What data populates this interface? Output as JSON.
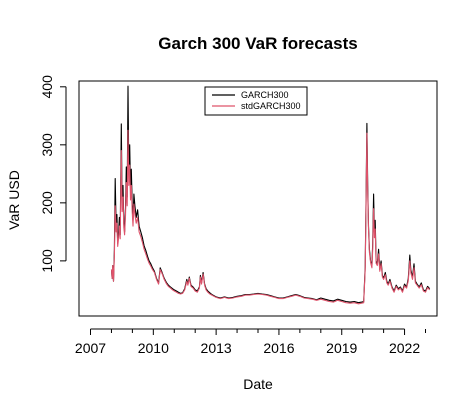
{
  "chart_data": {
    "type": "line",
    "title": "Garch 300 VaR forecasts",
    "xlabel": "Date",
    "ylabel": "VaR USD",
    "x_ticks": [
      "2007",
      "2010",
      "2013",
      "2016",
      "2019",
      "2022"
    ],
    "y_ticks": [
      100,
      200,
      300,
      400
    ],
    "xlim": [
      2006.45,
      2023.55
    ],
    "ylim": [
      5,
      410
    ],
    "grid": false,
    "legend_position": "top-center",
    "series": [
      {
        "name": "GARCH300",
        "color": "#000000",
        "points": [
          [
            2008.0,
            85
          ],
          [
            2008.03,
            70
          ],
          [
            2008.06,
            92
          ],
          [
            2008.1,
            65
          ],
          [
            2008.14,
            120
          ],
          [
            2008.18,
            242
          ],
          [
            2008.22,
            160
          ],
          [
            2008.26,
            180
          ],
          [
            2008.3,
            130
          ],
          [
            2008.34,
            150
          ],
          [
            2008.38,
            175
          ],
          [
            2008.42,
            145
          ],
          [
            2008.47,
            336
          ],
          [
            2008.51,
            200
          ],
          [
            2008.55,
            230
          ],
          [
            2008.59,
            165
          ],
          [
            2008.63,
            150
          ],
          [
            2008.67,
            190
          ],
          [
            2008.71,
            262
          ],
          [
            2008.75,
            210
          ],
          [
            2008.79,
            401
          ],
          [
            2008.83,
            250
          ],
          [
            2008.87,
            300
          ],
          [
            2008.91,
            225
          ],
          [
            2008.95,
            258
          ],
          [
            2008.99,
            200
          ],
          [
            2009.03,
            170
          ],
          [
            2009.07,
            215
          ],
          [
            2009.12,
            195
          ],
          [
            2009.18,
            175
          ],
          [
            2009.25,
            188
          ],
          [
            2009.32,
            160
          ],
          [
            2009.4,
            150
          ],
          [
            2009.48,
            140
          ],
          [
            2009.56,
            126
          ],
          [
            2009.64,
            118
          ],
          [
            2009.72,
            108
          ],
          [
            2009.8,
            100
          ],
          [
            2009.88,
            95
          ],
          [
            2009.96,
            88
          ],
          [
            2010.05,
            82
          ],
          [
            2010.15,
            70
          ],
          [
            2010.25,
            62
          ],
          [
            2010.33,
            88
          ],
          [
            2010.42,
            80
          ],
          [
            2010.52,
            70
          ],
          [
            2010.62,
            63
          ],
          [
            2010.72,
            58
          ],
          [
            2010.82,
            55
          ],
          [
            2010.92,
            52
          ],
          [
            2011.0,
            50
          ],
          [
            2011.1,
            48
          ],
          [
            2011.2,
            46
          ],
          [
            2011.3,
            44
          ],
          [
            2011.4,
            45
          ],
          [
            2011.5,
            52
          ],
          [
            2011.6,
            68
          ],
          [
            2011.65,
            60
          ],
          [
            2011.72,
            72
          ],
          [
            2011.8,
            58
          ],
          [
            2011.9,
            55
          ],
          [
            2012.0,
            50
          ],
          [
            2012.1,
            48
          ],
          [
            2012.2,
            55
          ],
          [
            2012.25,
            75
          ],
          [
            2012.3,
            62
          ],
          [
            2012.38,
            80
          ],
          [
            2012.45,
            60
          ],
          [
            2012.52,
            52
          ],
          [
            2012.6,
            48
          ],
          [
            2012.7,
            45
          ],
          [
            2012.8,
            42
          ],
          [
            2012.9,
            40
          ],
          [
            2013.0,
            38
          ],
          [
            2013.2,
            36
          ],
          [
            2013.4,
            38
          ],
          [
            2013.6,
            36
          ],
          [
            2013.8,
            37
          ],
          [
            2014.0,
            39
          ],
          [
            2014.2,
            40
          ],
          [
            2014.4,
            42
          ],
          [
            2014.6,
            42
          ],
          [
            2014.8,
            43
          ],
          [
            2015.0,
            44
          ],
          [
            2015.2,
            43
          ],
          [
            2015.4,
            42
          ],
          [
            2015.6,
            40
          ],
          [
            2015.8,
            38
          ],
          [
            2016.0,
            36
          ],
          [
            2016.2,
            36
          ],
          [
            2016.4,
            38
          ],
          [
            2016.6,
            40
          ],
          [
            2016.8,
            42
          ],
          [
            2017.0,
            40
          ],
          [
            2017.2,
            37
          ],
          [
            2017.4,
            36
          ],
          [
            2017.6,
            35
          ],
          [
            2017.8,
            33
          ],
          [
            2018.0,
            36
          ],
          [
            2018.2,
            34
          ],
          [
            2018.4,
            32
          ],
          [
            2018.6,
            31
          ],
          [
            2018.8,
            34
          ],
          [
            2019.0,
            32
          ],
          [
            2019.2,
            30
          ],
          [
            2019.4,
            29
          ],
          [
            2019.6,
            30
          ],
          [
            2019.8,
            28
          ],
          [
            2019.95,
            29
          ],
          [
            2020.05,
            30
          ],
          [
            2020.12,
            90
          ],
          [
            2020.16,
            200
          ],
          [
            2020.2,
            337
          ],
          [
            2020.24,
            230
          ],
          [
            2020.28,
            160
          ],
          [
            2020.32,
            120
          ],
          [
            2020.38,
            100
          ],
          [
            2020.44,
            90
          ],
          [
            2020.48,
            130
          ],
          [
            2020.52,
            215
          ],
          [
            2020.56,
            150
          ],
          [
            2020.6,
            170
          ],
          [
            2020.64,
            100
          ],
          [
            2020.7,
            95
          ],
          [
            2020.76,
            120
          ],
          [
            2020.82,
            85
          ],
          [
            2020.88,
            100
          ],
          [
            2020.94,
            75
          ],
          [
            2021.0,
            70
          ],
          [
            2021.08,
            80
          ],
          [
            2021.15,
            65
          ],
          [
            2021.22,
            60
          ],
          [
            2021.3,
            68
          ],
          [
            2021.4,
            55
          ],
          [
            2021.5,
            48
          ],
          [
            2021.6,
            58
          ],
          [
            2021.7,
            52
          ],
          [
            2021.8,
            55
          ],
          [
            2021.9,
            48
          ],
          [
            2022.0,
            60
          ],
          [
            2022.1,
            55
          ],
          [
            2022.18,
            70
          ],
          [
            2022.25,
            110
          ],
          [
            2022.3,
            85
          ],
          [
            2022.38,
            72
          ],
          [
            2022.45,
            95
          ],
          [
            2022.52,
            65
          ],
          [
            2022.6,
            60
          ],
          [
            2022.7,
            55
          ],
          [
            2022.8,
            62
          ],
          [
            2022.9,
            50
          ],
          [
            2023.0,
            48
          ],
          [
            2023.1,
            56
          ],
          [
            2023.2,
            52
          ]
        ]
      },
      {
        "name": "stdGARCH300",
        "color": "#DF536B",
        "points": [
          [
            2008.0,
            85
          ],
          [
            2008.03,
            70
          ],
          [
            2008.06,
            92
          ],
          [
            2008.1,
            65
          ],
          [
            2008.14,
            110
          ],
          [
            2008.18,
            195
          ],
          [
            2008.22,
            150
          ],
          [
            2008.26,
            165
          ],
          [
            2008.3,
            125
          ],
          [
            2008.34,
            140
          ],
          [
            2008.38,
            160
          ],
          [
            2008.42,
            138
          ],
          [
            2008.47,
            290
          ],
          [
            2008.51,
            185
          ],
          [
            2008.55,
            210
          ],
          [
            2008.59,
            158
          ],
          [
            2008.63,
            145
          ],
          [
            2008.67,
            178
          ],
          [
            2008.71,
            235
          ],
          [
            2008.75,
            195
          ],
          [
            2008.79,
            325
          ],
          [
            2008.83,
            230
          ],
          [
            2008.87,
            265
          ],
          [
            2008.91,
            205
          ],
          [
            2008.95,
            230
          ],
          [
            2008.99,
            185
          ],
          [
            2009.03,
            160
          ],
          [
            2009.07,
            198
          ],
          [
            2009.12,
            180
          ],
          [
            2009.18,
            165
          ],
          [
            2009.25,
            175
          ],
          [
            2009.32,
            150
          ],
          [
            2009.4,
            142
          ],
          [
            2009.48,
            132
          ],
          [
            2009.56,
            120
          ],
          [
            2009.64,
            112
          ],
          [
            2009.72,
            103
          ],
          [
            2009.8,
            96
          ],
          [
            2009.88,
            91
          ],
          [
            2009.96,
            85
          ],
          [
            2010.05,
            80
          ],
          [
            2010.15,
            68
          ],
          [
            2010.25,
            60
          ],
          [
            2010.33,
            85
          ],
          [
            2010.42,
            78
          ],
          [
            2010.52,
            68
          ],
          [
            2010.62,
            61
          ],
          [
            2010.72,
            56
          ],
          [
            2010.82,
            53
          ],
          [
            2010.92,
            50
          ],
          [
            2011.0,
            48
          ],
          [
            2011.1,
            46
          ],
          [
            2011.2,
            44
          ],
          [
            2011.3,
            43
          ],
          [
            2011.4,
            44
          ],
          [
            2011.5,
            50
          ],
          [
            2011.6,
            65
          ],
          [
            2011.65,
            58
          ],
          [
            2011.72,
            70
          ],
          [
            2011.8,
            56
          ],
          [
            2011.9,
            53
          ],
          [
            2012.0,
            48
          ],
          [
            2012.1,
            46
          ],
          [
            2012.2,
            53
          ],
          [
            2012.25,
            72
          ],
          [
            2012.3,
            60
          ],
          [
            2012.38,
            77
          ],
          [
            2012.45,
            58
          ],
          [
            2012.52,
            50
          ],
          [
            2012.6,
            46
          ],
          [
            2012.7,
            43
          ],
          [
            2012.8,
            41
          ],
          [
            2012.9,
            39
          ],
          [
            2013.0,
            37
          ],
          [
            2013.2,
            35
          ],
          [
            2013.4,
            37
          ],
          [
            2013.6,
            35
          ],
          [
            2013.8,
            36
          ],
          [
            2014.0,
            38
          ],
          [
            2014.2,
            39
          ],
          [
            2014.4,
            41
          ],
          [
            2014.6,
            41
          ],
          [
            2014.8,
            42
          ],
          [
            2015.0,
            43
          ],
          [
            2015.2,
            42
          ],
          [
            2015.4,
            41
          ],
          [
            2015.6,
            39
          ],
          [
            2015.8,
            37
          ],
          [
            2016.0,
            35
          ],
          [
            2016.2,
            35
          ],
          [
            2016.4,
            37
          ],
          [
            2016.6,
            39
          ],
          [
            2016.8,
            41
          ],
          [
            2017.0,
            39
          ],
          [
            2017.2,
            36
          ],
          [
            2017.4,
            35
          ],
          [
            2017.6,
            34
          ],
          [
            2017.8,
            32
          ],
          [
            2018.0,
            34
          ],
          [
            2018.2,
            32
          ],
          [
            2018.4,
            30
          ],
          [
            2018.6,
            29
          ],
          [
            2018.8,
            32
          ],
          [
            2019.0,
            30
          ],
          [
            2019.2,
            28
          ],
          [
            2019.4,
            27
          ],
          [
            2019.6,
            28
          ],
          [
            2019.8,
            26
          ],
          [
            2019.95,
            27
          ],
          [
            2020.05,
            28
          ],
          [
            2020.12,
            85
          ],
          [
            2020.16,
            190
          ],
          [
            2020.2,
            320
          ],
          [
            2020.24,
            220
          ],
          [
            2020.28,
            155
          ],
          [
            2020.32,
            115
          ],
          [
            2020.38,
            97
          ],
          [
            2020.44,
            88
          ],
          [
            2020.48,
            120
          ],
          [
            2020.52,
            190
          ],
          [
            2020.56,
            140
          ],
          [
            2020.6,
            155
          ],
          [
            2020.64,
            96
          ],
          [
            2020.7,
            92
          ],
          [
            2020.76,
            112
          ],
          [
            2020.82,
            82
          ],
          [
            2020.88,
            95
          ],
          [
            2020.94,
            72
          ],
          [
            2021.0,
            68
          ],
          [
            2021.08,
            76
          ],
          [
            2021.15,
            62
          ],
          [
            2021.22,
            58
          ],
          [
            2021.3,
            65
          ],
          [
            2021.4,
            53
          ],
          [
            2021.5,
            46
          ],
          [
            2021.6,
            56
          ],
          [
            2021.7,
            50
          ],
          [
            2021.8,
            53
          ],
          [
            2021.9,
            46
          ],
          [
            2022.0,
            57
          ],
          [
            2022.1,
            53
          ],
          [
            2022.18,
            66
          ],
          [
            2022.25,
            100
          ],
          [
            2022.3,
            80
          ],
          [
            2022.38,
            68
          ],
          [
            2022.45,
            88
          ],
          [
            2022.52,
            62
          ],
          [
            2022.6,
            58
          ],
          [
            2022.7,
            53
          ],
          [
            2022.8,
            59
          ],
          [
            2022.9,
            48
          ],
          [
            2023.0,
            46
          ],
          [
            2023.1,
            54
          ],
          [
            2023.2,
            50
          ]
        ]
      }
    ]
  }
}
